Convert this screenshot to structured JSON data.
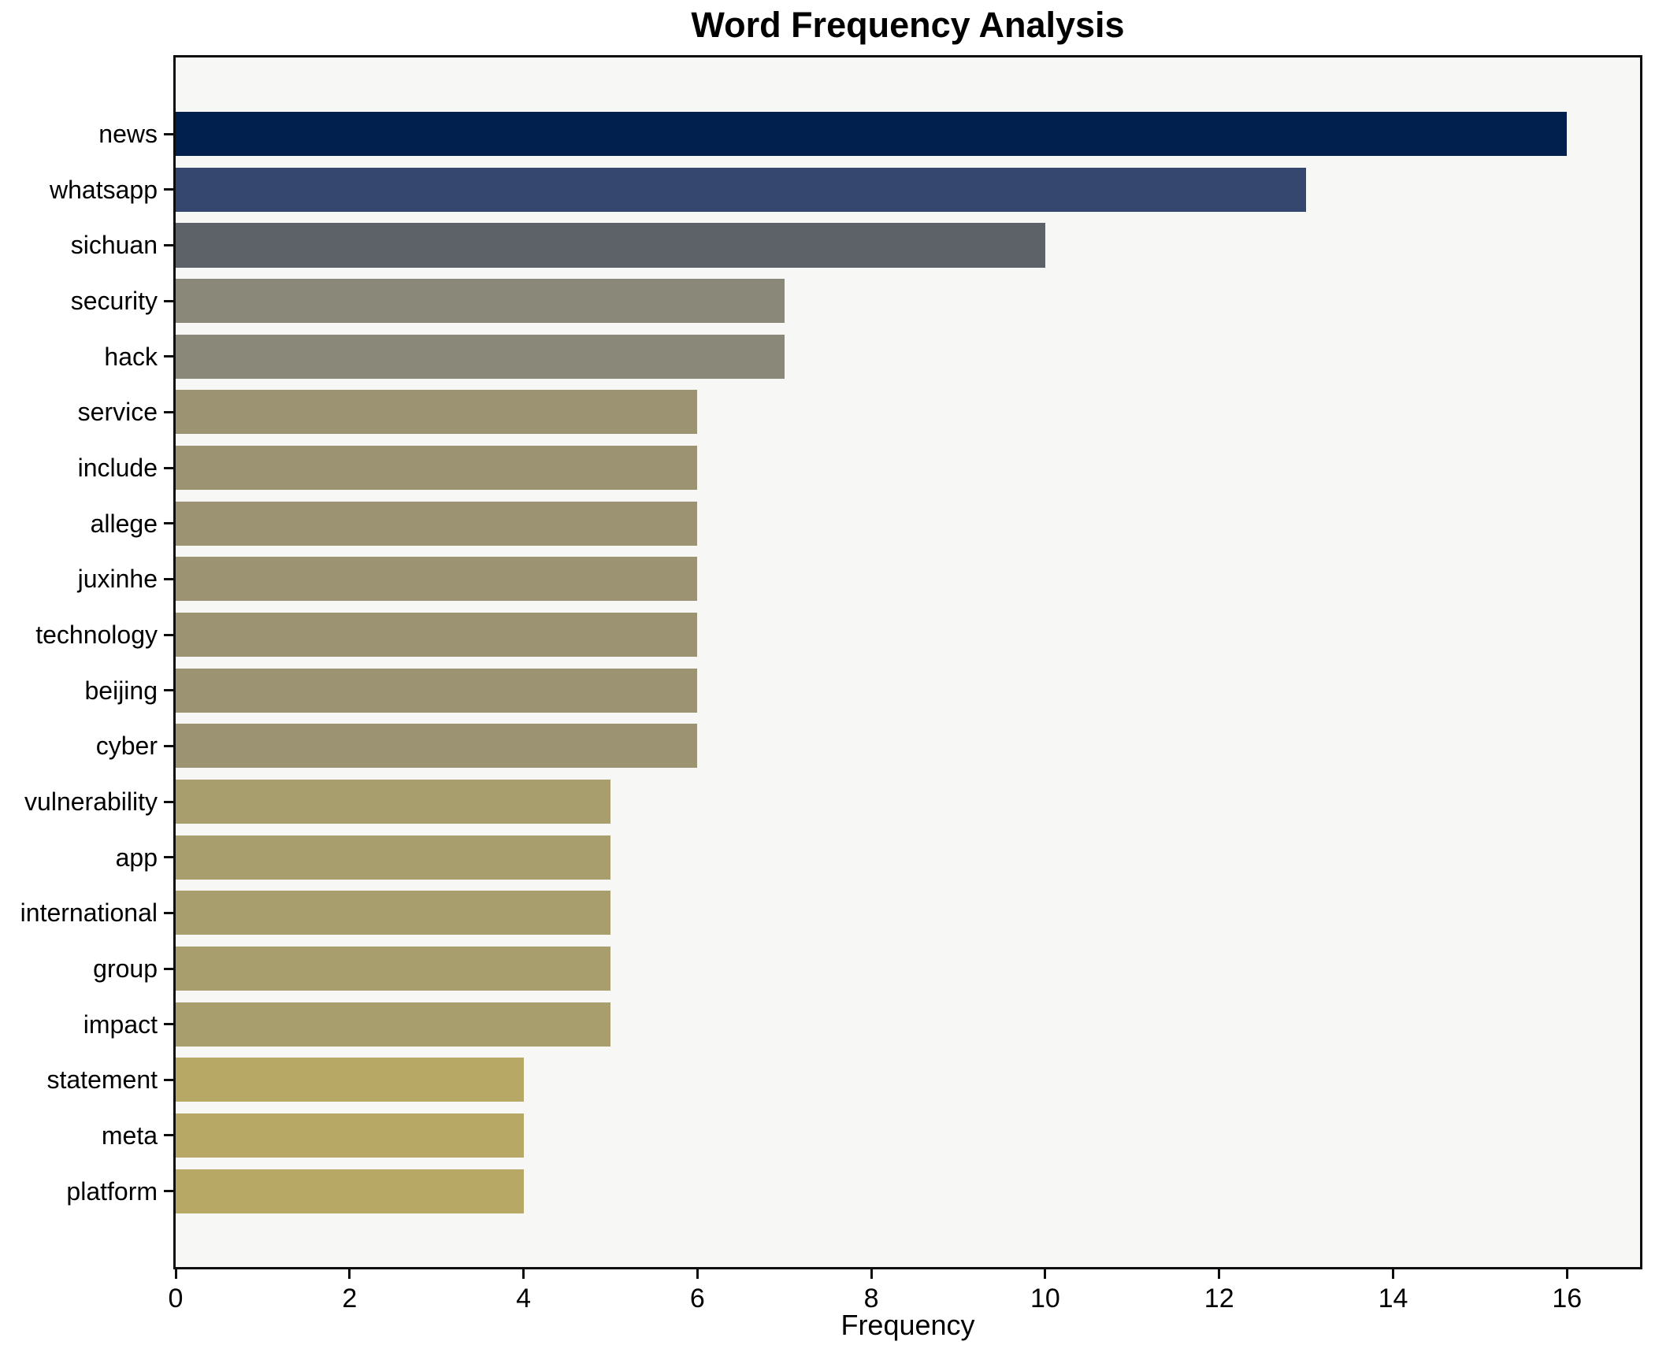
{
  "title": "Word Frequency Analysis",
  "chart_data": {
    "type": "bar",
    "orientation": "horizontal",
    "title": "Word Frequency Analysis",
    "xlabel": "Frequency",
    "ylabel": "",
    "xlim": [
      0,
      16.84
    ],
    "xticks": [
      0,
      2,
      4,
      6,
      8,
      10,
      12,
      14,
      16
    ],
    "grid": false,
    "legend_position": "none",
    "categories": [
      "news",
      "whatsapp",
      "sichuan",
      "security",
      "hack",
      "service",
      "include",
      "allege",
      "juxinhe",
      "technology",
      "beijing",
      "cyber",
      "vulnerability",
      "app",
      "international",
      "group",
      "impact",
      "statement",
      "meta",
      "platform"
    ],
    "values": [
      16,
      13,
      10,
      7,
      7,
      6,
      6,
      6,
      6,
      6,
      6,
      6,
      5,
      5,
      5,
      5,
      5,
      4,
      4,
      4
    ],
    "bar_colors": [
      "#01204e",
      "#35476f",
      "#5d6269",
      "#8a8878",
      "#8a8878",
      "#9b9372",
      "#9b9372",
      "#9b9372",
      "#9b9372",
      "#9b9372",
      "#9b9372",
      "#9b9372",
      "#a89d6c",
      "#a89d6c",
      "#a89d6c",
      "#a89d6c",
      "#a89d6c",
      "#b7a965",
      "#b7a965",
      "#b7a965"
    ],
    "colors": {
      "plot_background": "#f7f7f6",
      "figure_background": "#ffffff",
      "axis": "#0d0d0d",
      "text": "#000000"
    }
  }
}
